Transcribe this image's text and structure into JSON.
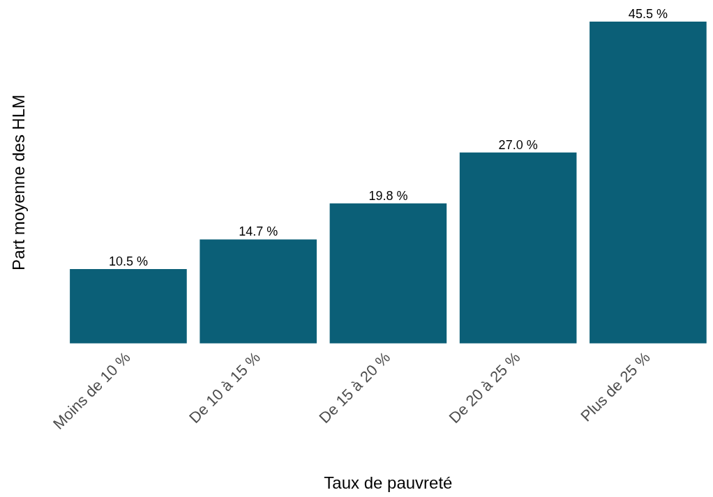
{
  "chart_data": {
    "type": "bar",
    "xlabel": "Taux de pauvreté",
    "ylabel": "Part moyenne des HLM",
    "categories": [
      "Moins de 10 %",
      "De 10 à 15 %",
      "De 15 à 20 %",
      "De 20 à 25 %",
      "Plus de 25 %"
    ],
    "values": [
      10.5,
      14.7,
      19.8,
      27.0,
      45.5
    ],
    "value_labels": [
      "10.5 %",
      "14.7 %",
      "19.8 %",
      "27.0 %",
      "45.5 %"
    ],
    "color": "#0b5f77",
    "ylim": [
      0,
      45.5
    ],
    "tick_labels": "x",
    "grid": false,
    "legend": false
  }
}
